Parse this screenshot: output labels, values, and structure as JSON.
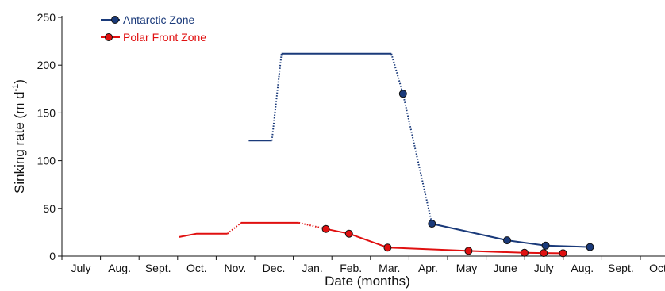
{
  "chart_data": {
    "type": "line",
    "xlabel": "Date (months)",
    "ylabel": "Sinking rate (m d",
    "ylabel_sup": "-1",
    "ylabel_close": ")",
    "categories": [
      "July",
      "Aug.",
      "Sept.",
      "Oct.",
      "Nov.",
      "Dec.",
      "Jan.",
      "Feb.",
      "Mar.",
      "Apr.",
      "May",
      "June",
      "July",
      "Aug.",
      "Sept.",
      "Oct."
    ],
    "xlim": [
      0,
      15.5
    ],
    "ylim": [
      0,
      250
    ],
    "yticks": [
      0,
      50,
      100,
      150,
      200,
      250
    ],
    "grid": false,
    "legend_position": "top-left",
    "series": [
      {
        "name": "Antarctic Zone",
        "color": "#1a3a7a",
        "segments": [
          {
            "style": "solid",
            "points": [
              [
                4.35,
                121
              ],
              [
                4.95,
                121
              ]
            ]
          },
          {
            "style": "dotted",
            "points": [
              [
                4.95,
                121
              ],
              [
                5.2,
                212
              ]
            ]
          },
          {
            "style": "solid",
            "points": [
              [
                5.2,
                212
              ],
              [
                8.05,
                212
              ]
            ]
          },
          {
            "style": "dotted",
            "points": [
              [
                8.05,
                212
              ],
              [
                8.35,
                170
              ],
              [
                9.1,
                34
              ]
            ]
          },
          {
            "style": "solid",
            "points": [
              [
                9.1,
                34
              ],
              [
                11.05,
                16.5
              ],
              [
                12.05,
                11
              ],
              [
                12.85,
                10
              ],
              [
                12.85,
                10
              ],
              [
                13.2,
                9.5
              ]
            ]
          }
        ],
        "markers": [
          [
            8.35,
            170
          ],
          [
            9.1,
            34
          ],
          [
            11.05,
            16.5
          ],
          [
            12.05,
            11
          ],
          [
            13.2,
            9.5
          ]
        ]
      },
      {
        "name": "Polar Front Zone",
        "color": "#e01010",
        "segments": [
          {
            "style": "solid",
            "points": [
              [
                2.55,
                20
              ],
              [
                3.0,
                23.5
              ],
              [
                3.8,
                23.5
              ]
            ]
          },
          {
            "style": "dotted",
            "points": [
              [
                3.8,
                23.5
              ],
              [
                4.15,
                35
              ]
            ]
          },
          {
            "style": "solid",
            "points": [
              [
                4.15,
                35
              ],
              [
                5.65,
                35
              ]
            ]
          },
          {
            "style": "dotted",
            "points": [
              [
                5.65,
                35
              ],
              [
                6.35,
                28.5
              ]
            ]
          },
          {
            "style": "solid",
            "points": [
              [
                6.35,
                28.5
              ],
              [
                6.95,
                23.5
              ],
              [
                7.95,
                9
              ],
              [
                10.05,
                5.5
              ],
              [
                11.5,
                3.5
              ],
              [
                12.0,
                3.2
              ],
              [
                12.5,
                3.0
              ]
            ]
          }
        ],
        "markers": [
          [
            6.35,
            28.5
          ],
          [
            6.95,
            23.5
          ],
          [
            7.95,
            9
          ],
          [
            10.05,
            5.5
          ],
          [
            11.5,
            3.5
          ],
          [
            12.0,
            3.2
          ],
          [
            12.5,
            3.0
          ]
        ]
      }
    ]
  }
}
